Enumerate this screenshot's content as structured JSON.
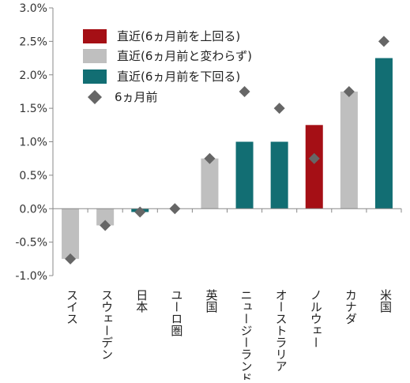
{
  "chart_data": {
    "type": "bar",
    "title": "",
    "xlabel": "",
    "ylabel": "",
    "ylim": [
      -1.0,
      3.0
    ],
    "ytick_values": [
      -1.0,
      -0.5,
      0.0,
      0.5,
      1.0,
      1.5,
      2.0,
      2.5,
      3.0
    ],
    "ytick_labels": [
      "-1.0%",
      "-0.5%",
      "0.0%",
      "0.5%",
      "1.0%",
      "1.5%",
      "2.0%",
      "2.5%",
      "3.0%"
    ],
    "grid": false,
    "legend_position": "top-left",
    "categories": [
      "スイス",
      "スウェーデン",
      "日本",
      "ユーロ圏",
      "英国",
      "ニュージーランド",
      "オーストラリア",
      "ノルウェー",
      "カナダ",
      "米国"
    ],
    "series": [
      {
        "name": "直近(6ヵ月前を上回る)",
        "kind": "bar",
        "color": "#a50f15",
        "values": [
          null,
          null,
          null,
          null,
          null,
          null,
          null,
          1.25,
          null,
          null
        ]
      },
      {
        "name": "直近(6ヵ月前と変わらず)",
        "kind": "bar",
        "color": "#bfbfbf",
        "values": [
          -0.75,
          -0.25,
          null,
          null,
          0.75,
          null,
          null,
          null,
          1.75,
          null
        ]
      },
      {
        "name": "直近(6ヵ月前を下回る)",
        "kind": "bar",
        "color": "#126e73",
        "values": [
          null,
          null,
          -0.05,
          0.0,
          null,
          1.0,
          1.0,
          null,
          null,
          2.25
        ]
      },
      {
        "name": "6ヵ月前",
        "kind": "marker",
        "marker": "diamond",
        "color": "#666666",
        "values": [
          -0.75,
          -0.25,
          -0.05,
          0.0,
          0.75,
          1.75,
          1.5,
          0.75,
          1.75,
          2.5
        ]
      }
    ]
  }
}
